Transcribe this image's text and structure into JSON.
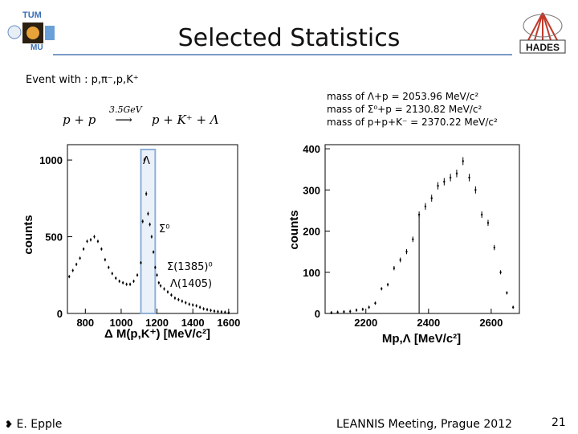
{
  "slide": {
    "title": "Selected Statistics",
    "event_line": "Event with : p,π⁻,p,K⁺",
    "reaction": {
      "beam": "p + p",
      "energy": "3.5GeV",
      "products": "p + K⁺ + Λ"
    },
    "mass_lines": [
      "mass of Λ+p  = 2053.96 MeV/c²",
      "mass of Σ⁰+p = 2130.82 MeV/c²",
      "mass of p+p+K⁻ = 2370.22 MeV/c²"
    ],
    "footer": {
      "author": "E. Epple",
      "meeting": "LEANNIS Meeting, Prague 2012",
      "page": "21"
    },
    "logos": {
      "left": [
        "TUM",
        "MU"
      ],
      "right": "HADES"
    }
  },
  "left_plot": {
    "ylabel": "counts",
    "xlabel": "Δ M(p,K⁺) [MeV/c²]",
    "yticks": [
      "0",
      "500",
      "1000"
    ],
    "xticks": [
      "800",
      "1000",
      "1200",
      "1400",
      "1600"
    ],
    "annotations": {
      "lambda": "Λ",
      "sigma0": "Σ⁰",
      "sigma1385": "Σ(1385)⁰",
      "lambda1405": "Λ(1405)"
    }
  },
  "right_plot": {
    "ylabel": "counts",
    "xlabel": "Mp,Λ [MeV/c²]",
    "yticks": [
      "0",
      "100",
      "200",
      "300",
      "400"
    ],
    "xticks": [
      "2200",
      "2400",
      "2600"
    ]
  },
  "chart_data": [
    {
      "type": "scatter",
      "title": "",
      "xlabel": "Δ M(p,K⁺) [MeV/c²]",
      "ylabel": "counts",
      "xlim": [
        700,
        1650
      ],
      "ylim": [
        0,
        1100
      ],
      "highlight_band": [
        1110,
        1190
      ],
      "x": [
        710,
        730,
        750,
        770,
        790,
        810,
        830,
        850,
        870,
        890,
        910,
        930,
        950,
        970,
        990,
        1010,
        1030,
        1050,
        1070,
        1090,
        1110,
        1120,
        1130,
        1140,
        1150,
        1160,
        1170,
        1180,
        1190,
        1200,
        1210,
        1220,
        1240,
        1260,
        1280,
        1300,
        1320,
        1340,
        1360,
        1380,
        1400,
        1420,
        1440,
        1460,
        1480,
        1500,
        1520,
        1540,
        1560,
        1580,
        1600
      ],
      "y": [
        240,
        280,
        320,
        360,
        420,
        470,
        480,
        500,
        470,
        420,
        350,
        300,
        260,
        230,
        210,
        200,
        190,
        190,
        210,
        250,
        330,
        600,
        1000,
        780,
        650,
        580,
        500,
        400,
        300,
        250,
        200,
        180,
        160,
        140,
        120,
        100,
        90,
        80,
        70,
        60,
        55,
        50,
        40,
        30,
        25,
        20,
        15,
        12,
        10,
        8,
        5
      ]
    },
    {
      "type": "scatter",
      "title": "",
      "xlabel": "Mp,Λ [MeV/c²]",
      "ylabel": "counts",
      "xlim": [
        2070,
        2690
      ],
      "ylim": [
        0,
        410
      ],
      "vline": 2370,
      "x": [
        2090,
        2110,
        2130,
        2150,
        2170,
        2190,
        2210,
        2230,
        2250,
        2270,
        2290,
        2310,
        2330,
        2350,
        2370,
        2390,
        2410,
        2430,
        2450,
        2470,
        2490,
        2510,
        2530,
        2550,
        2570,
        2590,
        2610,
        2630,
        2650,
        2670
      ],
      "y": [
        2,
        3,
        4,
        5,
        8,
        10,
        15,
        25,
        60,
        70,
        110,
        130,
        150,
        180,
        240,
        260,
        280,
        310,
        320,
        330,
        340,
        370,
        330,
        300,
        240,
        220,
        160,
        100,
        50,
        15
      ]
    }
  ]
}
